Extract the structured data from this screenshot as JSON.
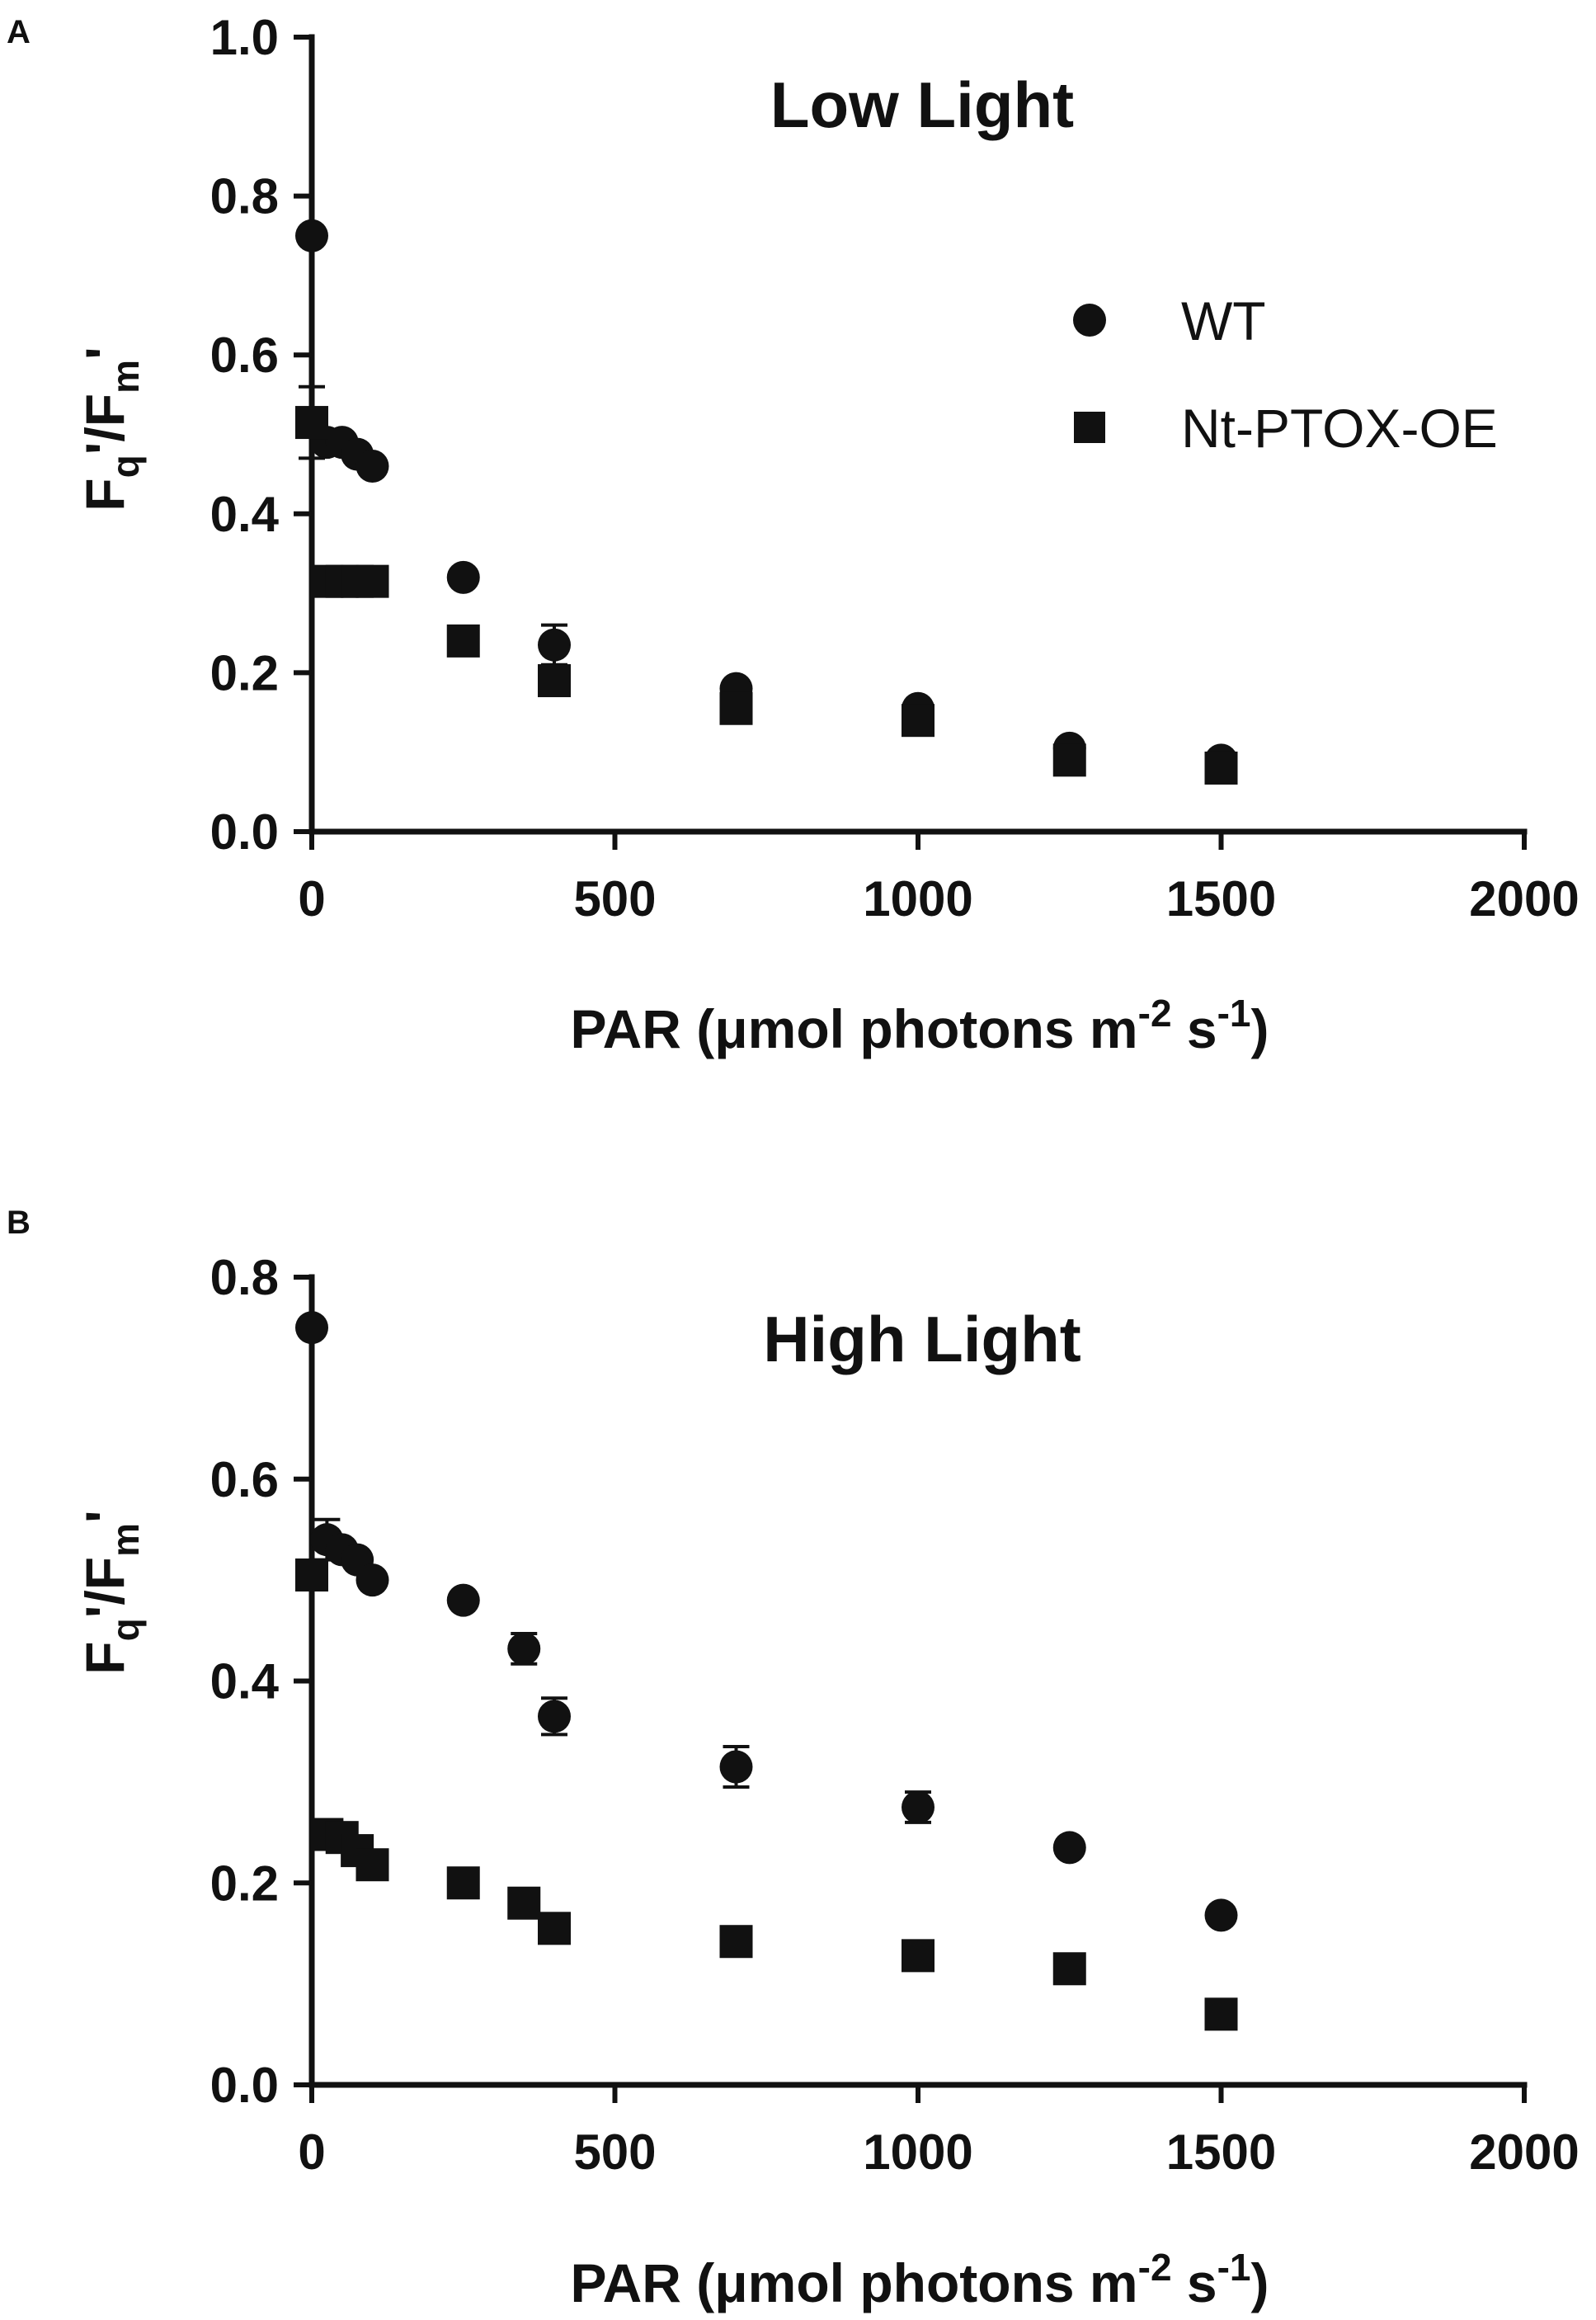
{
  "chart_data": [
    {
      "type": "scatter",
      "panel": "A",
      "title": "Low Light",
      "xlabel": "PAR (μmol photons m-2 s-1)",
      "ylabel": "Fq'/Fm'",
      "xlim": [
        0,
        2000
      ],
      "ylim": [
        0,
        1.0
      ],
      "xticks": [
        "0",
        "500",
        "1000",
        "1500",
        "2000"
      ],
      "yticks": [
        "0.0",
        "0.2",
        "0.4",
        "0.6",
        "0.8",
        "1.0"
      ],
      "legend_position": "top-right",
      "series": [
        {
          "name": "WT",
          "marker": "circle",
          "x": [
            0,
            25,
            50,
            75,
            100,
            250,
            400,
            700,
            1000,
            1250,
            1500
          ],
          "y": [
            0.75,
            0.49,
            0.49,
            0.475,
            0.46,
            0.32,
            0.235,
            0.18,
            0.155,
            0.105,
            0.09
          ],
          "err": [
            0,
            0,
            0,
            0,
            0,
            0,
            0.025,
            0,
            0,
            0,
            0
          ]
        },
        {
          "name": "Nt-PTOX-OE",
          "marker": "square",
          "x": [
            0,
            25,
            50,
            75,
            100,
            250,
            400,
            700,
            1000,
            1250,
            1500
          ],
          "y": [
            0.515,
            0.315,
            0.315,
            0.315,
            0.315,
            0.24,
            0.19,
            0.155,
            0.14,
            0.09,
            0.08
          ],
          "err": [
            0.045,
            0,
            0,
            0,
            0,
            0,
            0,
            0,
            0,
            0,
            0
          ]
        }
      ]
    },
    {
      "type": "scatter",
      "panel": "B",
      "title": "High Light",
      "xlabel": "PAR (μmol photons m-2 s-1)",
      "ylabel": "Fq'/Fm'",
      "xlim": [
        0,
        2000
      ],
      "ylim": [
        0,
        0.8
      ],
      "xticks": [
        "0",
        "500",
        "1000",
        "1500",
        "2000"
      ],
      "yticks": [
        "0.0",
        "0.2",
        "0.4",
        "0.6",
        "0.8"
      ],
      "series": [
        {
          "name": "WT",
          "marker": "circle",
          "x": [
            0,
            25,
            50,
            75,
            100,
            250,
            350,
            400,
            700,
            1000,
            1250,
            1500
          ],
          "y": [
            0.75,
            0.54,
            0.53,
            0.52,
            0.5,
            0.48,
            0.432,
            0.365,
            0.315,
            0.275,
            0.235,
            0.168
          ],
          "err": [
            0,
            0.02,
            0,
            0,
            0,
            0,
            0.015,
            0.018,
            0.02,
            0.015,
            0,
            0
          ]
        },
        {
          "name": "Nt-PTOX-OE",
          "marker": "square",
          "x": [
            0,
            25,
            50,
            75,
            100,
            250,
            350,
            400,
            700,
            1000,
            1250,
            1500
          ],
          "y": [
            0.505,
            0.248,
            0.245,
            0.232,
            0.218,
            0.2,
            0.18,
            0.155,
            0.142,
            0.128,
            0.115,
            0.07
          ],
          "err": [
            0,
            0,
            0,
            0,
            0,
            0,
            0,
            0,
            0,
            0,
            0,
            0
          ]
        }
      ]
    }
  ]
}
